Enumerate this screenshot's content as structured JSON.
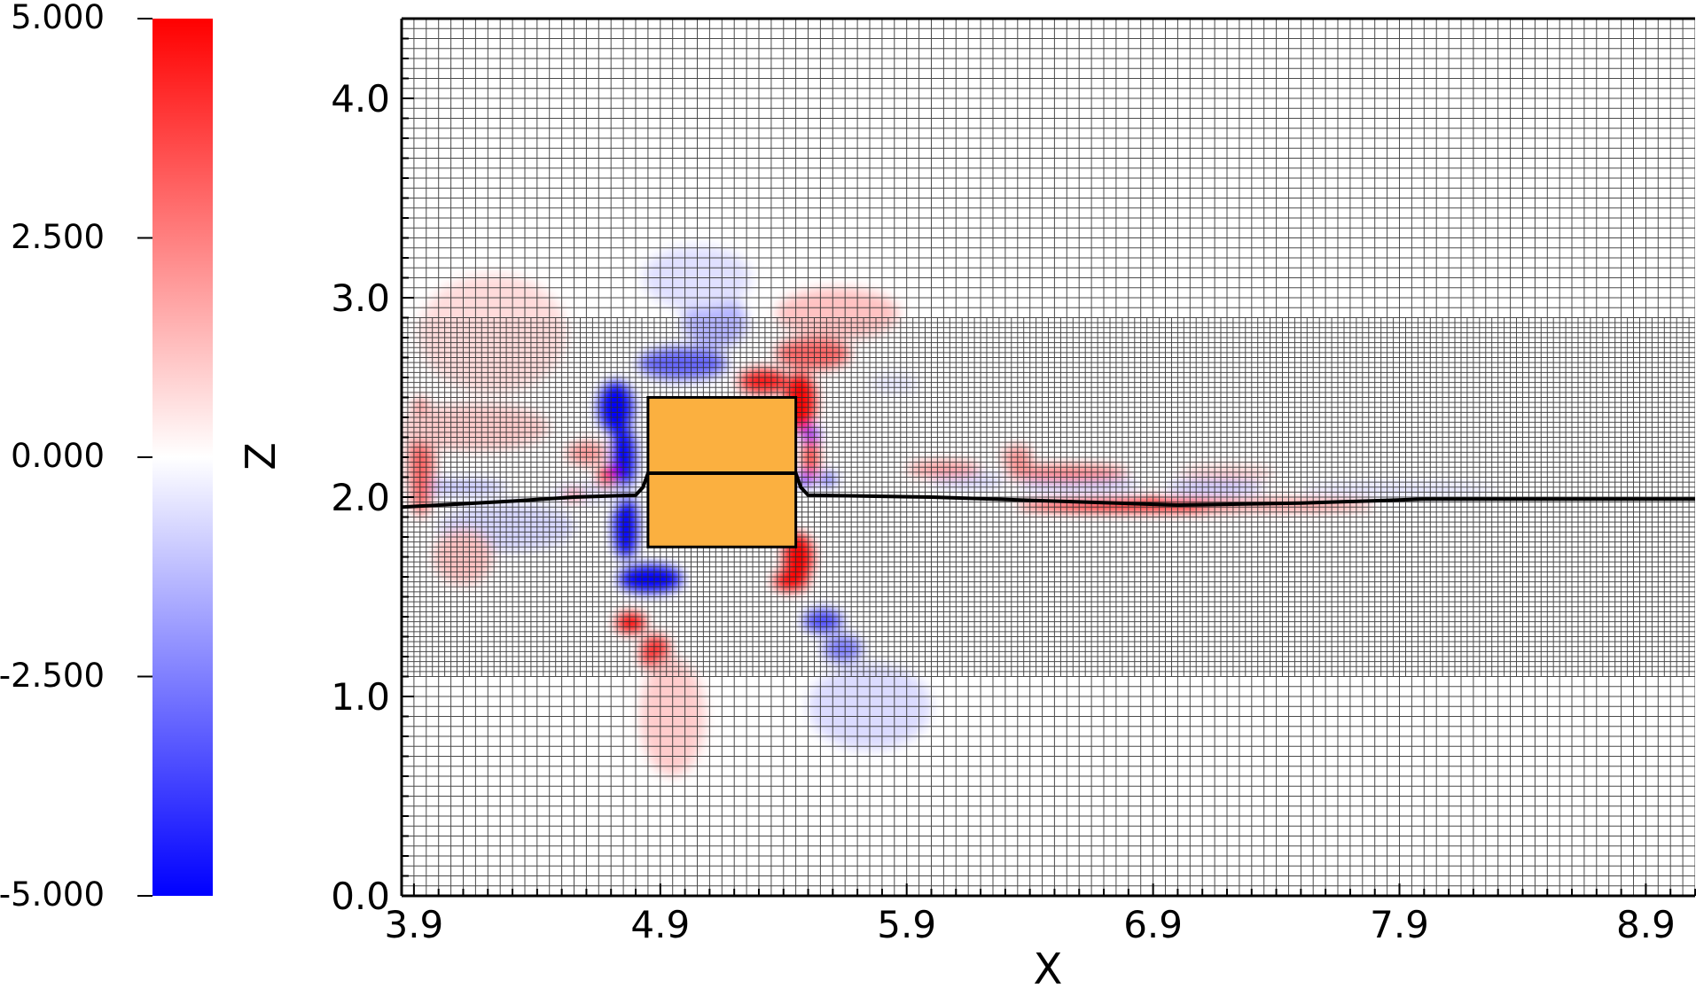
{
  "chart_data": {
    "type": "heatmap",
    "title": "",
    "xlabel": "X",
    "ylabel": "",
    "xlim": [
      3.85,
      9.1
    ],
    "ylim": [
      0.0,
      4.4
    ],
    "x_ticks": [
      "3.9",
      "4.9",
      "5.9",
      "6.9",
      "7.9",
      "8.9"
    ],
    "y_ticks": [
      "0.0",
      "1.0",
      "2.0",
      "3.0",
      "4.0"
    ],
    "colorbar": {
      "label": "Z",
      "range": [
        -5.0,
        5.0
      ],
      "ticks": [
        "5.000",
        "2.500",
        "0.000",
        "-2.500",
        "-5.000"
      ],
      "colors": {
        "high": "#ff0000",
        "mid": "#ffffff",
        "low": "#0000ff"
      }
    },
    "mesh": {
      "coarse_spacing": 0.05,
      "fine_spacing": 0.025,
      "fine_band_y": [
        1.1,
        2.9
      ]
    },
    "body": {
      "x": [
        4.85,
        5.45
      ],
      "y": [
        1.75,
        2.5
      ],
      "color": "#fbb040"
    },
    "interface_line": [
      [
        3.85,
        1.95
      ],
      [
        4.3,
        1.98
      ],
      [
        4.55,
        2.0
      ],
      [
        4.8,
        2.01
      ],
      [
        4.83,
        2.05
      ],
      [
        4.85,
        2.12
      ],
      [
        5.45,
        2.12
      ],
      [
        5.47,
        2.05
      ],
      [
        5.5,
        2.01
      ],
      [
        6.0,
        2.0
      ],
      [
        6.5,
        1.98
      ],
      [
        7.0,
        1.96
      ],
      [
        7.5,
        1.97
      ],
      [
        8.0,
        1.99
      ],
      [
        8.5,
        1.99
      ],
      [
        9.1,
        1.99
      ]
    ],
    "field_blobs": [
      {
        "x": 4.72,
        "y": 2.45,
        "value": -5.0,
        "rx": 0.07,
        "ry": 0.13
      },
      {
        "x": 4.75,
        "y": 2.2,
        "value": -5.0,
        "rx": 0.05,
        "ry": 0.16
      },
      {
        "x": 4.76,
        "y": 1.85,
        "value": -5.0,
        "rx": 0.05,
        "ry": 0.16
      },
      {
        "x": 4.86,
        "y": 1.59,
        "value": -5.0,
        "rx": 0.13,
        "ry": 0.07
      },
      {
        "x": 4.99,
        "y": 2.67,
        "value": -3.0,
        "rx": 0.18,
        "ry": 0.08
      },
      {
        "x": 5.12,
        "y": 2.88,
        "value": -1.5,
        "rx": 0.13,
        "ry": 0.14
      },
      {
        "x": 5.05,
        "y": 3.1,
        "value": -0.6,
        "rx": 0.22,
        "ry": 0.16
      },
      {
        "x": 5.51,
        "y": 2.31,
        "value": -5.0,
        "rx": 0.035,
        "ry": 0.035
      },
      {
        "x": 5.49,
        "y": 2.09,
        "value": -5.0,
        "rx": 0.035,
        "ry": 0.03
      },
      {
        "x": 5.58,
        "y": 2.09,
        "value": -4.0,
        "rx": 0.035,
        "ry": 0.025
      },
      {
        "x": 5.56,
        "y": 1.38,
        "value": -3.5,
        "rx": 0.08,
        "ry": 0.06
      },
      {
        "x": 5.64,
        "y": 1.24,
        "value": -2.5,
        "rx": 0.08,
        "ry": 0.07
      },
      {
        "x": 5.75,
        "y": 0.95,
        "value": -0.7,
        "rx": 0.25,
        "ry": 0.22
      },
      {
        "x": 4.28,
        "y": 1.85,
        "value": -0.8,
        "rx": 0.28,
        "ry": 0.12
      },
      {
        "x": 4.08,
        "y": 2.05,
        "value": -1.2,
        "rx": 0.2,
        "ry": 0.04
      },
      {
        "x": 4.6,
        "y": 2.02,
        "value": -0.6,
        "rx": 0.15,
        "ry": 0.05
      },
      {
        "x": 6.15,
        "y": 2.08,
        "value": -0.8,
        "rx": 0.15,
        "ry": 0.04
      },
      {
        "x": 6.6,
        "y": 2.06,
        "value": -1.0,
        "rx": 0.25,
        "ry": 0.035
      },
      {
        "x": 7.15,
        "y": 2.05,
        "value": -1.2,
        "rx": 0.2,
        "ry": 0.035
      },
      {
        "x": 7.9,
        "y": 2.04,
        "value": -0.7,
        "rx": 0.4,
        "ry": 0.03
      },
      {
        "x": 5.85,
        "y": 2.57,
        "value": -0.5,
        "rx": 0.1,
        "ry": 0.05
      },
      {
        "x": 5.47,
        "y": 2.48,
        "value": 5.0,
        "rx": 0.06,
        "ry": 0.15
      },
      {
        "x": 5.51,
        "y": 2.2,
        "value": 4.0,
        "rx": 0.03,
        "ry": 0.1
      },
      {
        "x": 5.46,
        "y": 1.7,
        "value": 5.0,
        "rx": 0.06,
        "ry": 0.12
      },
      {
        "x": 5.43,
        "y": 1.58,
        "value": 5.0,
        "rx": 0.07,
        "ry": 0.05
      },
      {
        "x": 5.32,
        "y": 2.58,
        "value": 4.5,
        "rx": 0.1,
        "ry": 0.06
      },
      {
        "x": 5.52,
        "y": 2.72,
        "value": 3.0,
        "rx": 0.15,
        "ry": 0.08
      },
      {
        "x": 5.62,
        "y": 2.92,
        "value": 1.2,
        "rx": 0.25,
        "ry": 0.13
      },
      {
        "x": 4.78,
        "y": 1.37,
        "value": 5.0,
        "rx": 0.06,
        "ry": 0.05
      },
      {
        "x": 4.88,
        "y": 1.22,
        "value": 4.0,
        "rx": 0.06,
        "ry": 0.09
      },
      {
        "x": 4.95,
        "y": 0.9,
        "value": 1.0,
        "rx": 0.13,
        "ry": 0.3
      },
      {
        "x": 4.68,
        "y": 2.1,
        "value": 5.0,
        "rx": 0.035,
        "ry": 0.05
      },
      {
        "x": 4.6,
        "y": 2.22,
        "value": 2.0,
        "rx": 0.08,
        "ry": 0.06
      },
      {
        "x": 4.55,
        "y": 2.01,
        "value": 3.0,
        "rx": 0.04,
        "ry": 0.025
      },
      {
        "x": 3.93,
        "y": 2.2,
        "value": 3.0,
        "rx": 0.05,
        "ry": 0.3
      },
      {
        "x": 4.15,
        "y": 2.35,
        "value": 1.0,
        "rx": 0.3,
        "ry": 0.12
      },
      {
        "x": 4.22,
        "y": 2.82,
        "value": 0.7,
        "rx": 0.3,
        "ry": 0.3
      },
      {
        "x": 4.1,
        "y": 1.7,
        "value": 1.2,
        "rx": 0.12,
        "ry": 0.14
      },
      {
        "x": 6.05,
        "y": 2.14,
        "value": 2.0,
        "rx": 0.15,
        "ry": 0.04
      },
      {
        "x": 6.35,
        "y": 2.2,
        "value": 2.0,
        "rx": 0.06,
        "ry": 0.06
      },
      {
        "x": 6.55,
        "y": 2.12,
        "value": 2.5,
        "rx": 0.25,
        "ry": 0.04
      },
      {
        "x": 6.9,
        "y": 1.96,
        "value": 5.0,
        "rx": 0.55,
        "ry": 0.03
      },
      {
        "x": 7.45,
        "y": 1.96,
        "value": 2.5,
        "rx": 0.35,
        "ry": 0.025
      },
      {
        "x": 7.2,
        "y": 2.12,
        "value": 1.0,
        "rx": 0.2,
        "ry": 0.035
      }
    ]
  }
}
